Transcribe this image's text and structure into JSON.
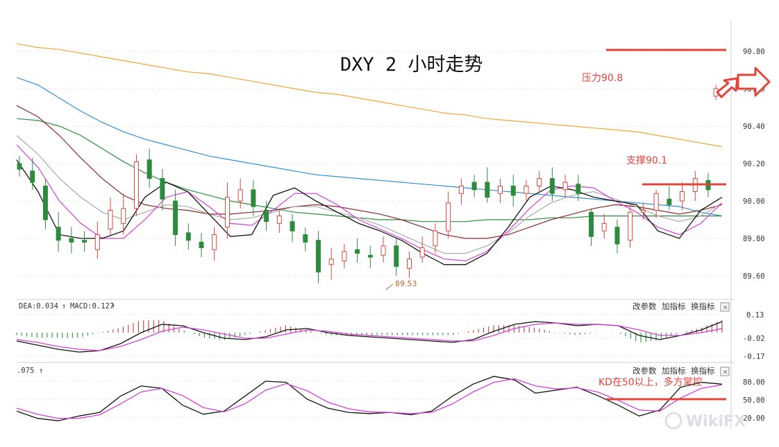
{
  "chart_data": [
    {
      "type": "candlestick",
      "title": "DXY 2 小时走势",
      "yticks": [
        "90.80",
        "90.60",
        "90.40",
        "90.20",
        "90.00",
        "89.80",
        "89.60"
      ],
      "ylim": [
        89.48,
        90.98
      ],
      "grid": true,
      "low_marker": "89.53",
      "annotations": [
        "压力90.8",
        "支撑90.1"
      ],
      "levels": [
        90.8,
        90.1
      ],
      "series": [
        {
          "role": "ma",
          "color": "#f2a531",
          "values": [
            90.84,
            90.82,
            90.81,
            90.79,
            90.77,
            90.75,
            90.73,
            90.71,
            90.69,
            90.68,
            90.66,
            90.64,
            90.62,
            90.6,
            90.58,
            90.57,
            90.55,
            90.53,
            90.51,
            90.49,
            90.47,
            90.46,
            90.44,
            90.43,
            90.42,
            90.41,
            90.4,
            90.39,
            90.38,
            90.37,
            90.35,
            90.33,
            90.31,
            90.29
          ]
        },
        {
          "role": "ma",
          "color": "#2f8fd6",
          "values": [
            90.66,
            90.62,
            90.55,
            90.48,
            90.42,
            90.37,
            90.33,
            90.3,
            90.27,
            90.24,
            90.22,
            90.2,
            90.18,
            90.16,
            90.14,
            90.13,
            90.12,
            90.11,
            90.1,
            90.09,
            90.08,
            90.07,
            90.06,
            90.05,
            90.04,
            90.03,
            90.02,
            90.01,
            90.0,
            89.99,
            89.98,
            89.97,
            89.94,
            89.92
          ]
        },
        {
          "role": "ma",
          "color": "#2e8b3e",
          "values": [
            90.44,
            90.43,
            90.4,
            90.35,
            90.28,
            90.21,
            90.15,
            90.1,
            90.06,
            90.03,
            90.0,
            89.98,
            89.96,
            89.94,
            89.93,
            89.92,
            89.91,
            89.9,
            89.9,
            89.89,
            89.89,
            89.89,
            89.9,
            89.9,
            89.9,
            89.91,
            89.91,
            89.92,
            89.92,
            89.92,
            89.92,
            89.92,
            89.92,
            89.92
          ]
        },
        {
          "role": "ma",
          "color": "#8b2a2a",
          "values": [
            90.51,
            90.45,
            90.35,
            90.23,
            90.12,
            90.03,
            89.98,
            89.96,
            89.95,
            89.93,
            89.93,
            89.94,
            89.95,
            89.97,
            89.98,
            89.97,
            89.95,
            89.93,
            89.9,
            89.86,
            89.82,
            89.8,
            89.8,
            89.82,
            89.86,
            89.9,
            89.93,
            89.96,
            89.98,
            89.97,
            89.95,
            89.93,
            89.95,
            89.98
          ]
        },
        {
          "role": "ma",
          "color": "#aaaaaa",
          "values": [
            90.35,
            90.25,
            90.12,
            90.02,
            89.94,
            89.9,
            89.94,
            89.98,
            89.97,
            89.93,
            89.9,
            89.91,
            89.94,
            89.97,
            89.97,
            89.94,
            89.91,
            89.87,
            89.82,
            89.77,
            89.72,
            89.72,
            89.76,
            89.83,
            89.92,
            89.99,
            90.03,
            90.05,
            90.01,
            89.97,
            89.92,
            89.89,
            89.92,
            89.99
          ]
        },
        {
          "role": "ma",
          "color": "#d63fd6",
          "values": [
            90.3,
            90.18,
            90.0,
            89.88,
            89.8,
            89.8,
            89.9,
            90.02,
            90.05,
            89.97,
            89.88,
            89.87,
            89.95,
            90.04,
            90.04,
            89.98,
            89.9,
            89.85,
            89.8,
            89.74,
            89.69,
            89.68,
            89.73,
            89.84,
            89.96,
            90.06,
            90.08,
            90.07,
            90.0,
            89.94,
            89.86,
            89.82,
            89.88,
            89.99
          ]
        },
        {
          "role": "ma",
          "color": "#111111",
          "values": [
            90.22,
            90.05,
            89.82,
            89.8,
            89.8,
            89.84,
            90.02,
            90.1,
            90.05,
            89.93,
            89.81,
            89.82,
            90.03,
            90.07,
            90.0,
            89.94,
            89.88,
            89.84,
            89.79,
            89.72,
            89.66,
            89.66,
            89.72,
            89.86,
            90.02,
            90.08,
            90.06,
            90.02,
            90.0,
            89.98,
            89.84,
            89.8,
            89.95,
            90.02
          ]
        }
      ],
      "candles": [
        [
          90.2,
          90.17,
          90.24,
          90.13
        ],
        [
          90.16,
          90.1,
          90.23,
          90.06
        ],
        [
          90.08,
          89.9,
          90.12,
          89.85
        ],
        [
          89.86,
          89.79,
          89.94,
          89.73
        ],
        [
          89.8,
          89.78,
          89.86,
          89.72
        ],
        [
          89.79,
          89.78,
          89.84,
          89.73
        ],
        [
          89.74,
          89.82,
          89.89,
          89.69
        ],
        [
          89.85,
          89.95,
          90.02,
          89.82
        ],
        [
          89.88,
          89.96,
          90.04,
          89.82
        ],
        [
          89.96,
          90.21,
          90.25,
          89.92
        ],
        [
          90.22,
          90.12,
          90.28,
          90.07
        ],
        [
          90.12,
          90.01,
          90.17,
          89.95
        ],
        [
          90.0,
          89.82,
          90.06,
          89.76
        ],
        [
          89.83,
          89.79,
          89.88,
          89.74
        ],
        [
          89.78,
          89.75,
          89.83,
          89.7
        ],
        [
          89.74,
          89.82,
          89.86,
          89.68
        ],
        [
          89.86,
          90.02,
          90.1,
          89.8
        ],
        [
          90.0,
          90.06,
          90.12,
          89.96
        ],
        [
          90.06,
          89.97,
          90.11,
          89.92
        ],
        [
          89.95,
          89.89,
          90.0,
          89.84
        ],
        [
          89.88,
          89.92,
          89.95,
          89.83
        ],
        [
          89.89,
          89.84,
          89.93,
          89.78
        ],
        [
          89.82,
          89.78,
          89.86,
          89.73
        ],
        [
          89.79,
          89.62,
          89.84,
          89.56
        ],
        [
          89.66,
          89.69,
          89.75,
          89.58
        ],
        [
          89.68,
          89.73,
          89.77,
          89.64
        ],
        [
          89.74,
          89.72,
          89.8,
          89.67
        ],
        [
          89.71,
          89.7,
          89.76,
          89.64
        ],
        [
          89.71,
          89.76,
          89.81,
          89.67
        ],
        [
          89.76,
          89.65,
          89.8,
          89.6
        ],
        [
          89.64,
          89.69,
          89.73,
          89.59
        ],
        [
          89.7,
          89.75,
          89.81,
          89.67
        ],
        [
          89.76,
          89.84,
          89.88,
          89.72
        ],
        [
          89.84,
          89.99,
          90.05,
          89.8
        ],
        [
          90.04,
          90.08,
          90.12,
          89.98
        ],
        [
          90.1,
          90.06,
          90.14,
          90.02
        ],
        [
          90.1,
          90.02,
          90.18,
          89.99
        ],
        [
          90.04,
          90.08,
          90.12,
          89.99
        ],
        [
          90.08,
          90.03,
          90.14,
          89.97
        ],
        [
          90.04,
          90.08,
          90.11,
          90.0
        ],
        [
          90.08,
          90.12,
          90.16,
          90.04
        ],
        [
          90.12,
          90.04,
          90.18,
          90.0
        ],
        [
          90.06,
          90.1,
          90.14,
          90.02
        ],
        [
          90.09,
          90.04,
          90.14,
          90.0
        ],
        [
          89.94,
          89.81,
          89.96,
          89.76
        ],
        [
          89.84,
          89.88,
          89.93,
          89.8
        ],
        [
          89.86,
          89.77,
          89.9,
          89.72
        ],
        [
          89.79,
          89.94,
          89.98,
          89.75
        ],
        [
          89.94,
          89.95,
          89.99,
          89.9
        ],
        [
          89.95,
          90.04,
          90.06,
          89.91
        ],
        [
          90.01,
          89.98,
          90.08,
          89.95
        ],
        [
          90.0,
          90.05,
          90.1,
          89.95
        ],
        [
          90.05,
          90.12,
          90.16,
          90.0
        ],
        [
          90.11,
          90.06,
          90.15,
          90.02
        ],
        [
          90.56,
          90.6,
          90.62,
          90.54
        ]
      ]
    },
    {
      "type": "line",
      "name": "MACD",
      "yticks": [
        "0.13",
        "-0.02",
        "-0.17"
      ],
      "ylim": [
        -0.19,
        0.15
      ],
      "series": [
        {
          "role": "line",
          "color": "#111111",
          "values": [
            -0.06,
            -0.09,
            -0.12,
            -0.14,
            -0.13,
            -0.08,
            0.0,
            0.06,
            0.05,
            0.0,
            -0.04,
            -0.05,
            -0.03,
            0.02,
            0.03,
            0.0,
            -0.02,
            -0.03,
            -0.04,
            -0.05,
            -0.06,
            -0.07,
            -0.05,
            0.01,
            0.06,
            0.08,
            0.07,
            0.05,
            0.06,
            0.05,
            -0.02,
            -0.05,
            -0.02,
            0.02,
            0.08
          ]
        },
        {
          "role": "line",
          "color": "#d63fd6",
          "values": [
            -0.05,
            -0.07,
            -0.1,
            -0.12,
            -0.13,
            -0.1,
            -0.05,
            0.01,
            0.04,
            0.02,
            -0.01,
            -0.04,
            -0.04,
            -0.01,
            0.02,
            0.01,
            -0.01,
            -0.02,
            -0.03,
            -0.04,
            -0.05,
            -0.06,
            -0.06,
            -0.02,
            0.03,
            0.06,
            0.07,
            0.06,
            0.06,
            0.05,
            0.02,
            -0.02,
            -0.02,
            0.0,
            0.03
          ]
        }
      ]
    },
    {
      "type": "line",
      "name": "KD",
      "yticks": [
        "80.00",
        "50.00",
        "20.00"
      ],
      "ylim": [
        12,
        98
      ],
      "series": [
        {
          "role": "line",
          "color": "#111111",
          "values": [
            30,
            18,
            14,
            22,
            28,
            55,
            72,
            68,
            40,
            25,
            30,
            55,
            80,
            78,
            50,
            35,
            28,
            26,
            28,
            24,
            30,
            55,
            75,
            88,
            82,
            60,
            65,
            70,
            56,
            40,
            22,
            32,
            70,
            78,
            75
          ]
        },
        {
          "role": "line",
          "color": "#d63fd6",
          "values": [
            35,
            25,
            18,
            18,
            24,
            42,
            62,
            68,
            56,
            36,
            29,
            42,
            65,
            76,
            64,
            45,
            34,
            29,
            28,
            26,
            28,
            42,
            62,
            78,
            84,
            72,
            67,
            69,
            62,
            48,
            32,
            30,
            52,
            68,
            74
          ]
        }
      ]
    }
  ],
  "title": "DXY 2 小时走势",
  "annotations": {
    "resistance": "压力90.8",
    "support": "支撑90.1",
    "kd_note": "KD在50以上，多方掌控",
    "low_label": "89.53"
  },
  "macd_panel": {
    "label_dea": "DEA:0.034",
    "label_macd": "MACD:0.127",
    "arrow": "↑",
    "buttons": [
      "改参数",
      "加指标",
      "换指标"
    ],
    "close": "×",
    "yticks": [
      "0.13",
      "-0.02",
      "-0.17"
    ]
  },
  "kd_panel": {
    "label": ".075",
    "arrow": "↑",
    "buttons": [
      "改参数",
      "加指标",
      "换指标"
    ],
    "close": "×",
    "yticks": [
      "80.00",
      "50.00",
      "20.00"
    ]
  },
  "yticks": [
    "90.80",
    "90.60",
    "90.40",
    "90.20",
    "90.00",
    "89.80",
    "89.60"
  ],
  "watermark": "WikiFX",
  "colors": {
    "red": "#e0443a",
    "up": "#d9463e",
    "down": "#2e8b3e",
    "grid": "#d9d9d9"
  }
}
